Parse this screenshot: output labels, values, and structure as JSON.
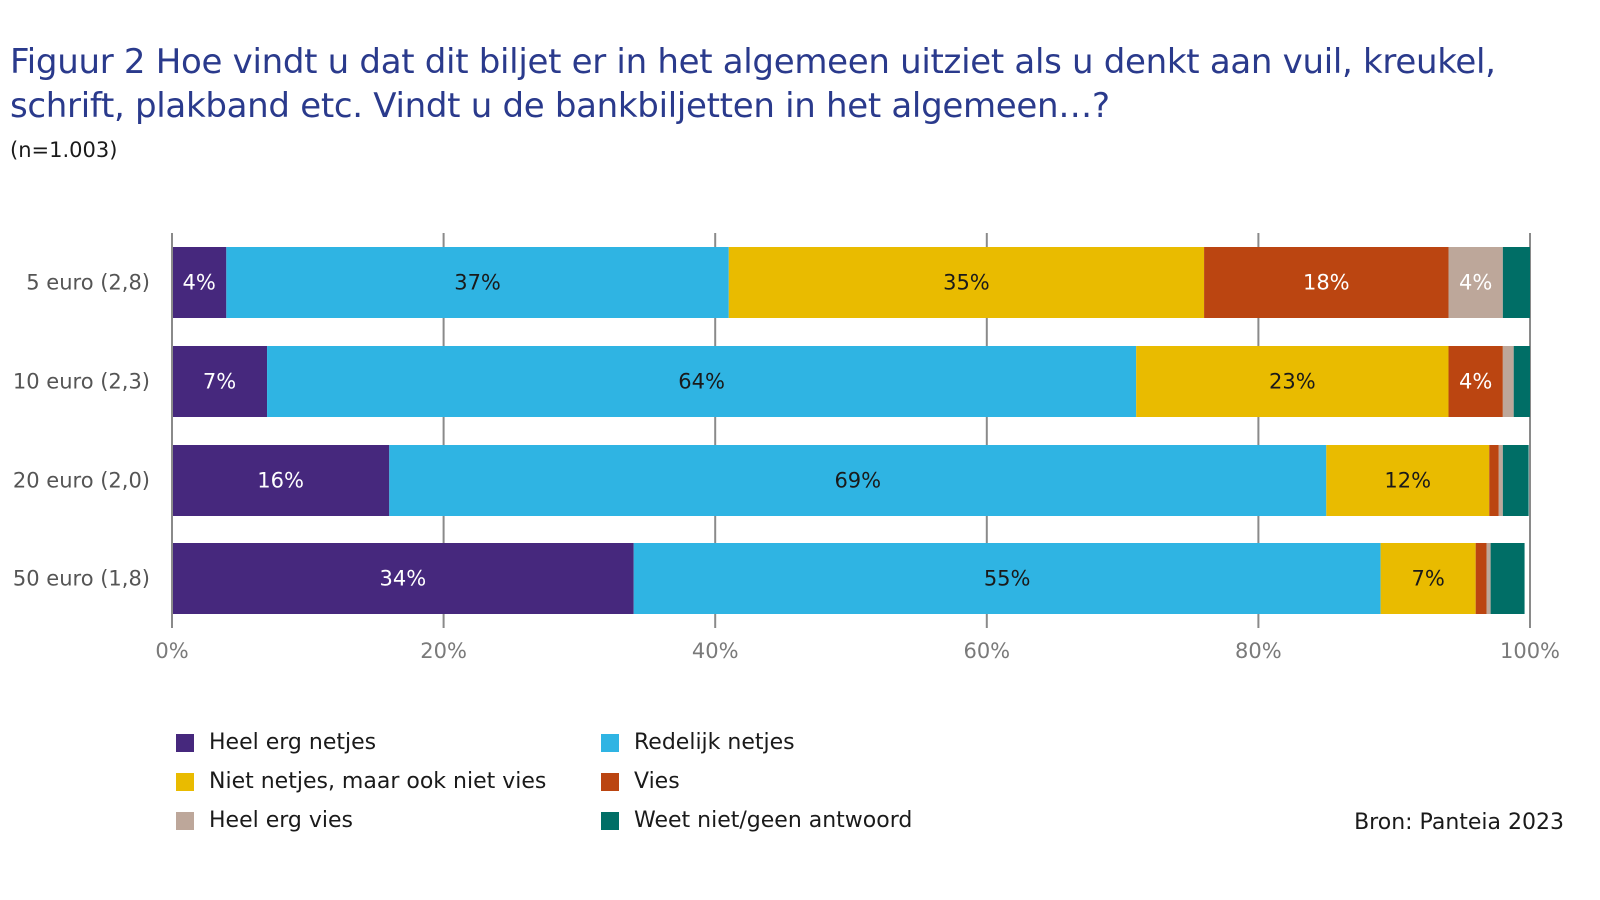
{
  "title": "Figuur 2  Hoe vindt u dat dit biljet er in het algemeen uitziet als u denkt aan vuil, kreukel, schrift, plakband etc. Vindt u de bankbiljetten in het algemeen…?",
  "subtitle": "(n=1.003)",
  "source": "Bron: Panteia 2023",
  "chart_data": {
    "type": "bar",
    "orientation": "horizontal",
    "stacked": true,
    "categories": [
      "5 euro (2,8)",
      "10 euro (2,3)",
      "20 euro (2,0)",
      "50 euro (1,8)"
    ],
    "series": [
      {
        "name": "Heel erg netjes",
        "color": "#46287d",
        "label_color": "#ffffff",
        "values": [
          4,
          7,
          16,
          34
        ],
        "labels": [
          "4%",
          "7%",
          "16%",
          "34%"
        ]
      },
      {
        "name": "Redelijk netjes",
        "color": "#2fb4e3",
        "label_color": "#1a1a1a",
        "values": [
          37,
          64,
          69,
          55
        ],
        "labels": [
          "37%",
          "64%",
          "69%",
          "55%"
        ]
      },
      {
        "name": "Niet netjes, maar ook niet vies",
        "color": "#e9bb00",
        "label_color": "#1a1a1a",
        "values": [
          35,
          23,
          12,
          7
        ],
        "labels": [
          "35%",
          "23%",
          "12%",
          "7%"
        ]
      },
      {
        "name": "Vies",
        "color": "#bb4511",
        "label_color": "#ffffff",
        "values": [
          18,
          4,
          0.7,
          0.8
        ],
        "labels": [
          "18%",
          "4%",
          "",
          ""
        ]
      },
      {
        "name": "Heel erg vies",
        "color": "#bda79a",
        "label_color": "#ffffff",
        "values": [
          4,
          0.8,
          0.3,
          0.3
        ],
        "labels": [
          "4%",
          "",
          "",
          ""
        ]
      },
      {
        "name": "Weet niet/geen antwoord",
        "color": "#006e66",
        "label_color": "#ffffff",
        "values": [
          2.5,
          2,
          1.9,
          2.5
        ],
        "labels": [
          "",
          "",
          "",
          ""
        ]
      }
    ],
    "x_ticks": [
      "0%",
      "20%",
      "40%",
      "60%",
      "80%",
      "100%"
    ],
    "xlim": [
      0,
      100
    ],
    "grid": "vertical",
    "legend_position": "bottom"
  }
}
